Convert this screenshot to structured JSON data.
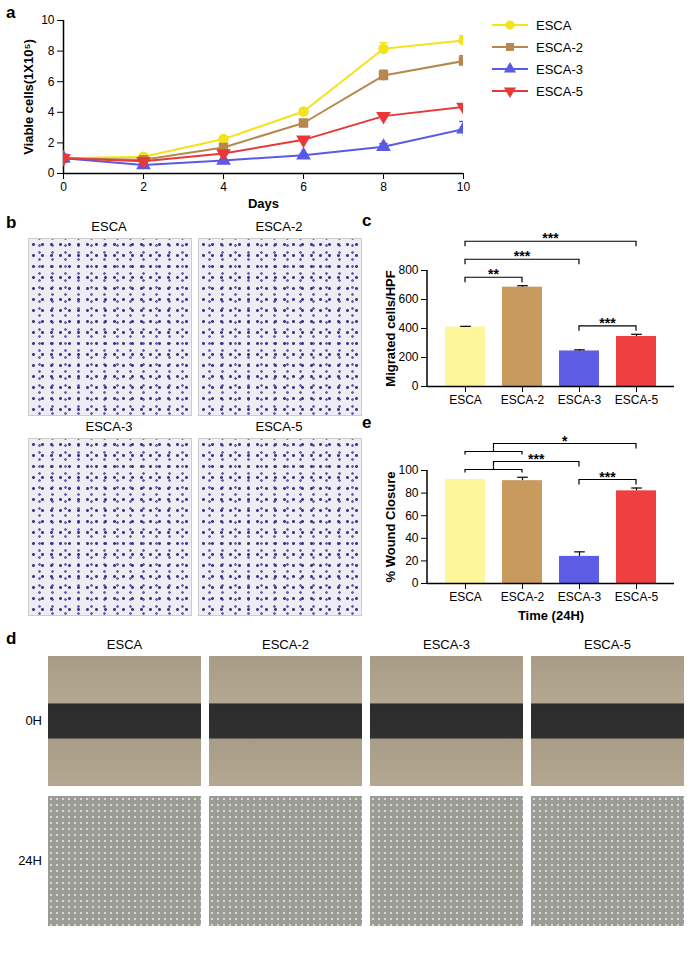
{
  "chart_data": [
    {
      "type": "line",
      "panel": "a",
      "x_label": "Days",
      "y_label": "Viable cells(1X10⁵)",
      "x": [
        0,
        2,
        4,
        6,
        8,
        10
      ],
      "xlim": [
        0,
        10
      ],
      "xticks": [
        0,
        2,
        4,
        6,
        8,
        10
      ],
      "ylim": [
        0,
        10
      ],
      "yticks": [
        0,
        2,
        4,
        6,
        8,
        10
      ],
      "legend": "right",
      "series": [
        {
          "name": "ESCA",
          "color": "#f2e31b",
          "marker": "circle",
          "values": [
            1,
            1.1,
            2.25,
            4.05,
            8.15,
            8.7
          ],
          "errors": [
            0,
            0.05,
            0.15,
            0.2,
            0.4,
            0.3
          ]
        },
        {
          "name": "ESCA-2",
          "color": "#b8874c",
          "marker": "square",
          "values": [
            1,
            0.9,
            1.7,
            3.3,
            6.4,
            7.35
          ],
          "errors": [
            0,
            0.05,
            0.1,
            0.2,
            0.35,
            0.35
          ]
        },
        {
          "name": "ESCA-3",
          "color": "#5a5ae8",
          "marker": "triangle",
          "values": [
            1,
            0.55,
            0.85,
            1.2,
            1.75,
            2.9
          ],
          "errors": [
            0,
            0.05,
            0.05,
            0.05,
            0.2,
            0.5
          ]
        },
        {
          "name": "ESCA-5",
          "color": "#e83838",
          "marker": "triangle-down",
          "values": [
            1,
            0.8,
            1.3,
            2.2,
            3.75,
            4.35
          ],
          "errors": [
            0,
            0.05,
            0.05,
            0.05,
            0.1,
            0.2
          ]
        }
      ]
    },
    {
      "type": "bar",
      "panel": "c",
      "y_label": "Migrated cells/HPF",
      "categories": [
        "ESCA",
        "ESCA-2",
        "ESCA-3",
        "ESCA-5"
      ],
      "values": [
        410,
        685,
        245,
        345
      ],
      "errors": [
        5,
        10,
        8,
        15
      ],
      "colors": [
        "#fff59a",
        "#c89a5e",
        "#5c5ce6",
        "#ee4040"
      ],
      "ylim": [
        0,
        800
      ],
      "yticks": [
        0,
        200,
        400,
        600,
        800
      ],
      "annotations": [
        {
          "from": "ESCA",
          "to": "ESCA-2",
          "label": "**"
        },
        {
          "from": "ESCA",
          "to": "ESCA-3",
          "label": "***"
        },
        {
          "from": "ESCA",
          "to": "ESCA-5",
          "label": "***"
        },
        {
          "from": "ESCA-3",
          "to": "ESCA-5",
          "label": "***"
        }
      ]
    },
    {
      "type": "bar",
      "panel": "e",
      "y_label": "% Wound Closure",
      "x_label": "Time (24H)",
      "categories": [
        "ESCA",
        "ESCA-2",
        "ESCA-3",
        "ESCA-5"
      ],
      "values": [
        92,
        91,
        24,
        82
      ],
      "errors": [
        0,
        3,
        4,
        2.5
      ],
      "colors": [
        "#fff59a",
        "#c89a5e",
        "#5c5ce6",
        "#ee4040"
      ],
      "ylim": [
        0,
        100
      ],
      "yticks": [
        0,
        20,
        40,
        60,
        80,
        100
      ],
      "annotations": [
        {
          "from": [
            "ESCA",
            "ESCA-2"
          ],
          "to": "ESCA-3",
          "label": "***"
        },
        {
          "from": [
            "ESCA",
            "ESCA-2"
          ],
          "to": "ESCA-5",
          "label": "*"
        },
        {
          "from": "ESCA-3",
          "to": "ESCA-5",
          "label": "***"
        }
      ]
    }
  ],
  "images": [
    {
      "panel": "b",
      "labels": [
        "ESCA",
        "ESCA-2",
        "ESCA-3",
        "ESCA-5"
      ]
    },
    {
      "panel": "d",
      "columns": [
        "ESCA",
        "ESCA-2",
        "ESCA-3",
        "ESCA-5"
      ],
      "rows": [
        "0H",
        "24H"
      ]
    }
  ]
}
